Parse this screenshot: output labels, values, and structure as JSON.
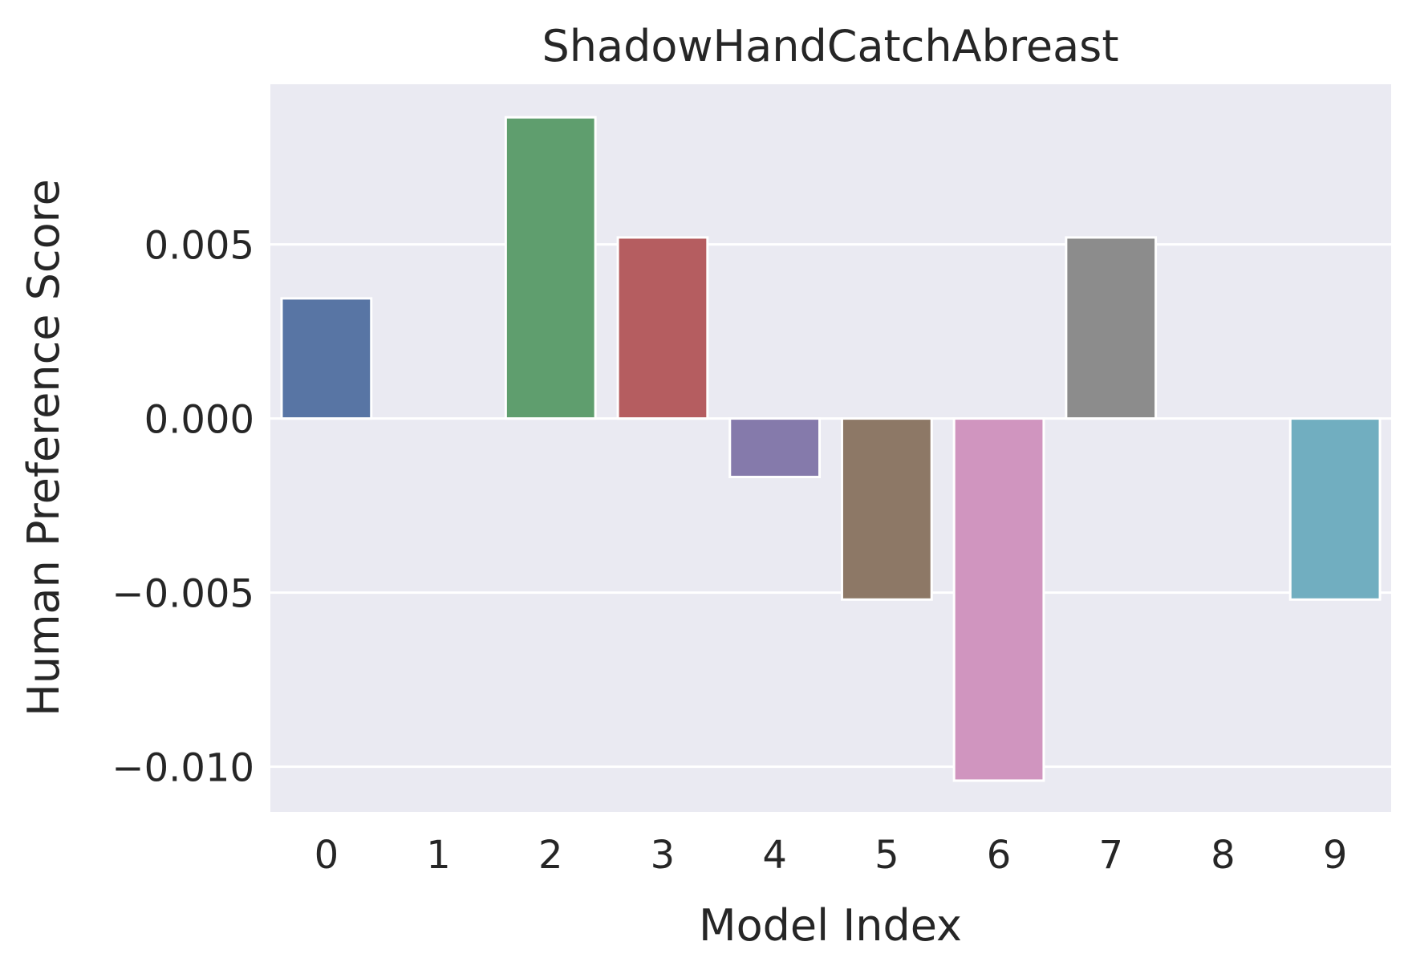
{
  "chart_data": {
    "type": "bar",
    "title": "ShadowHandCatchAbreast",
    "xlabel": "Model Index",
    "ylabel": "Human Preference Score",
    "categories": [
      "0",
      "1",
      "2",
      "3",
      "4",
      "5",
      "6",
      "7",
      "8",
      "9"
    ],
    "values": [
      0.00345,
      0.0,
      0.00865,
      0.0052,
      -0.00168,
      -0.0052,
      -0.0104,
      0.0052,
      0.0,
      -0.0052
    ],
    "colors": [
      "#5875a4",
      "#cc8963",
      "#5f9e6e",
      "#b55d60",
      "#857aab",
      "#8d7866",
      "#d095bf",
      "#8c8c8c",
      "#c1b37f",
      "#71aec0"
    ],
    "ylim": [
      -0.0113,
      0.0096
    ],
    "yticks": [
      -0.01,
      -0.005,
      0.0,
      0.005
    ],
    "ytick_labels": [
      "−0.010",
      "−0.005",
      "0.000",
      "0.005"
    ],
    "grid": true,
    "background": "#eaeaf2",
    "grid_color": "#ffffff"
  }
}
